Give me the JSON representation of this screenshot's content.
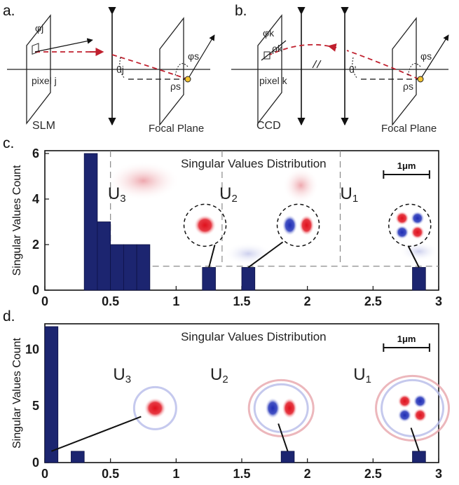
{
  "schematic": {
    "panel_a": {
      "label": "a.",
      "phi_j": "φj",
      "pixel_label": "pixel j",
      "device": "SLM",
      "theta": "θj",
      "phi_s": "φs",
      "rho_s": "ρs",
      "focal_plane": "Focal Plane"
    },
    "panel_b": {
      "label": "b.",
      "phi_k": "φk",
      "rho_k": "ρk",
      "pixel_label": "pixel k",
      "device": "CCD",
      "theta": "θ'",
      "phi_s": "φs",
      "rho_s": "ρs",
      "focal_plane": "Focal Plane"
    }
  },
  "colors": {
    "bar": "#1c2570",
    "red_mode": "#d81e2a",
    "blue_mode": "#2a3ab8",
    "beam": "#c0202e"
  },
  "chart_data": [
    {
      "panel": "c.",
      "type": "bar",
      "title": "Singular Values Distribution",
      "ylabel": "Singular Values Count",
      "xlim": [
        0,
        3
      ],
      "ylim": [
        0,
        6
      ],
      "xticks": [
        "0",
        "0.5",
        "1",
        "1.5",
        "2",
        "2.5",
        "3"
      ],
      "yticks": [
        "0",
        "2",
        "4",
        "6"
      ],
      "bin_width": 0.1,
      "bars": [
        {
          "x": 0.35,
          "count": 6
        },
        {
          "x": 0.45,
          "count": 3
        },
        {
          "x": 0.55,
          "count": 2
        },
        {
          "x": 0.65,
          "count": 2
        },
        {
          "x": 0.75,
          "count": 2
        },
        {
          "x": 1.25,
          "count": 1
        },
        {
          "x": 1.55,
          "count": 1
        },
        {
          "x": 2.85,
          "count": 1
        }
      ],
      "modes": [
        {
          "name": "U3",
          "sub": "3"
        },
        {
          "name": "U2",
          "sub": "2"
        },
        {
          "name": "U1",
          "sub": "1"
        }
      ],
      "scale_bar": "1μm"
    },
    {
      "panel": "d.",
      "type": "bar",
      "title": "Singular Values Distribution",
      "ylabel": "Singular Values Count",
      "xlim": [
        0,
        3
      ],
      "ylim": [
        0,
        12
      ],
      "xticks": [
        "0",
        "0.5",
        "1",
        "1.5",
        "2",
        "2.5",
        "3"
      ],
      "yticks": [
        "0",
        "5",
        "10"
      ],
      "bin_width": 0.1,
      "bars": [
        {
          "x": 0.05,
          "count": 12
        },
        {
          "x": 0.25,
          "count": 1
        },
        {
          "x": 1.85,
          "count": 1
        },
        {
          "x": 2.85,
          "count": 1
        }
      ],
      "modes": [
        {
          "name": "U3",
          "sub": "3"
        },
        {
          "name": "U2",
          "sub": "2"
        },
        {
          "name": "U1",
          "sub": "1"
        }
      ],
      "scale_bar": "1μm"
    }
  ]
}
